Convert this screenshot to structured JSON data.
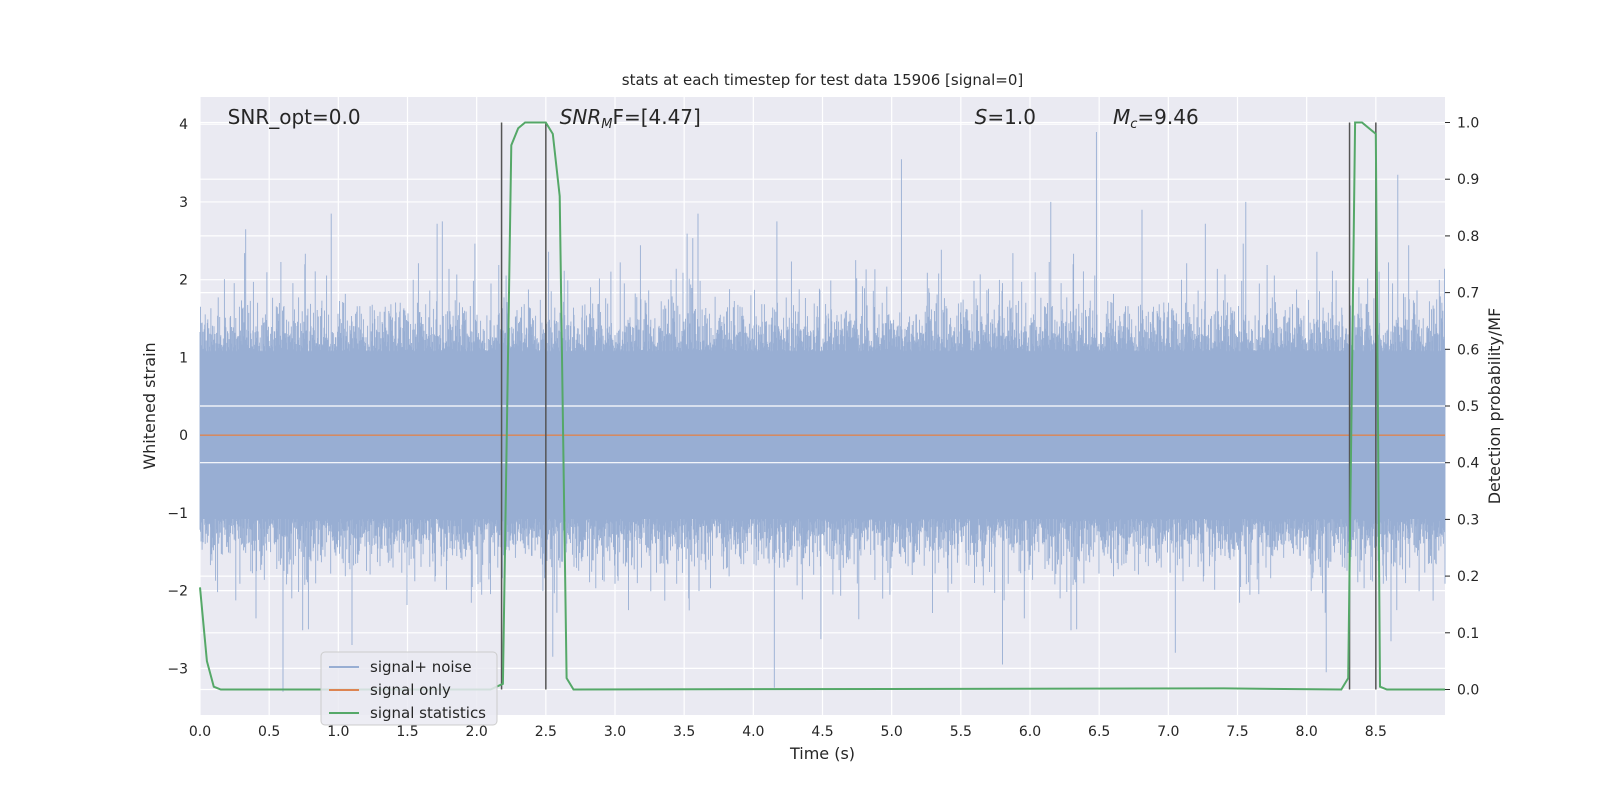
{
  "chart_data": {
    "type": "line",
    "title": "stats at each timestep for test data 15906 [signal=0]",
    "xlabel": "Time (s)",
    "ylabel": "Whitened strain",
    "y2label": "Detection probability/MF",
    "xlim": [
      0.0,
      9.0
    ],
    "ylim": [
      -3.6,
      4.35
    ],
    "y2lim": [
      -0.045,
      1.045
    ],
    "xticks": [
      "0.0",
      "0.5",
      "1.0",
      "1.5",
      "2.0",
      "2.5",
      "3.0",
      "3.5",
      "4.0",
      "4.5",
      "5.0",
      "5.5",
      "6.0",
      "6.5",
      "7.0",
      "7.5",
      "8.0",
      "8.5"
    ],
    "xtick_values": [
      0.0,
      0.5,
      1.0,
      1.5,
      2.0,
      2.5,
      3.0,
      3.5,
      4.0,
      4.5,
      5.0,
      5.5,
      6.0,
      6.5,
      7.0,
      7.5,
      8.0,
      8.5
    ],
    "yticks": [
      "−3",
      "−2",
      "−1",
      "0",
      "1",
      "2",
      "3",
      "4"
    ],
    "ytick_values": [
      -3,
      -2,
      -1,
      0,
      1,
      2,
      3,
      4
    ],
    "y2ticks": [
      "0.0",
      "0.1",
      "0.2",
      "0.3",
      "0.4",
      "0.5",
      "0.6",
      "0.7",
      "0.8",
      "0.9",
      "1.0"
    ],
    "y2tick_values": [
      0.0,
      0.1,
      0.2,
      0.3,
      0.4,
      0.5,
      0.6,
      0.7,
      0.8,
      0.9,
      1.0
    ],
    "grid": true,
    "legend_placement": "lower-left",
    "annotations": [
      {
        "text": "SNR_opt=0.0",
        "x": 0.2
      },
      {
        "text": "SNR",
        "sub": "M",
        "tail": "F=[4.47]",
        "x": 2.6,
        "italic_prefix": true
      },
      {
        "text": "S",
        "tail": "=1.0",
        "x": 5.6,
        "italic_prefix": true
      },
      {
        "text": "M",
        "sub": "c",
        "tail": "=9.46",
        "x": 6.6,
        "italic_prefix": true
      }
    ],
    "vertical_lines": [
      2.18,
      2.5,
      8.31,
      8.5
    ],
    "series": [
      {
        "name": "signal+ noise",
        "color": "#98aed3",
        "style": "noise",
        "typical_range": [
          -1.1,
          1.1
        ],
        "notable_peaks": [
          {
            "x": 5.07,
            "y": 3.55
          },
          {
            "x": 6.48,
            "y": 3.9
          },
          {
            "x": 8.66,
            "y": 3.35
          },
          {
            "x": 0.33,
            "y": 2.65
          },
          {
            "x": 0.95,
            "y": 2.85
          },
          {
            "x": 1.75,
            "y": 2.75
          },
          {
            "x": 3.6,
            "y": 2.85
          },
          {
            "x": 4.17,
            "y": 2.75
          },
          {
            "x": 6.15,
            "y": 3.0
          },
          {
            "x": 6.81,
            "y": 2.9
          },
          {
            "x": 7.56,
            "y": 3.0
          }
        ],
        "notable_troughs": [
          {
            "x": 0.6,
            "y": -3.3
          },
          {
            "x": 4.15,
            "y": -3.25
          },
          {
            "x": 5.8,
            "y": -2.95
          },
          {
            "x": 2.55,
            "y": -2.85
          },
          {
            "x": 1.1,
            "y": -2.7
          },
          {
            "x": 7.05,
            "y": -2.8
          },
          {
            "x": 8.14,
            "y": -3.05
          },
          {
            "x": 8.61,
            "y": -2.65
          }
        ]
      },
      {
        "name": "signal only",
        "color": "#dd8452",
        "x": [
          0.0,
          9.0
        ],
        "y": [
          0.0,
          0.0
        ]
      },
      {
        "name": "signal statistics",
        "color": "#55a868",
        "axis": "right",
        "x": [
          0.0,
          0.05,
          0.1,
          0.15,
          0.2,
          2.1,
          2.19,
          2.25,
          2.3,
          2.35,
          2.5,
          2.55,
          2.6,
          2.65,
          2.7,
          7.4,
          8.25,
          8.3,
          8.33,
          8.35,
          8.4,
          8.5,
          8.53,
          8.58,
          9.0
        ],
        "y": [
          0.18,
          0.05,
          0.005,
          0.0,
          0.0,
          0.0,
          0.01,
          0.96,
          0.99,
          1.0,
          1.0,
          0.98,
          0.87,
          0.02,
          0.0,
          0.002,
          0.0,
          0.02,
          0.6,
          1.0,
          1.0,
          0.98,
          0.005,
          0.0,
          0.0
        ]
      }
    ]
  }
}
